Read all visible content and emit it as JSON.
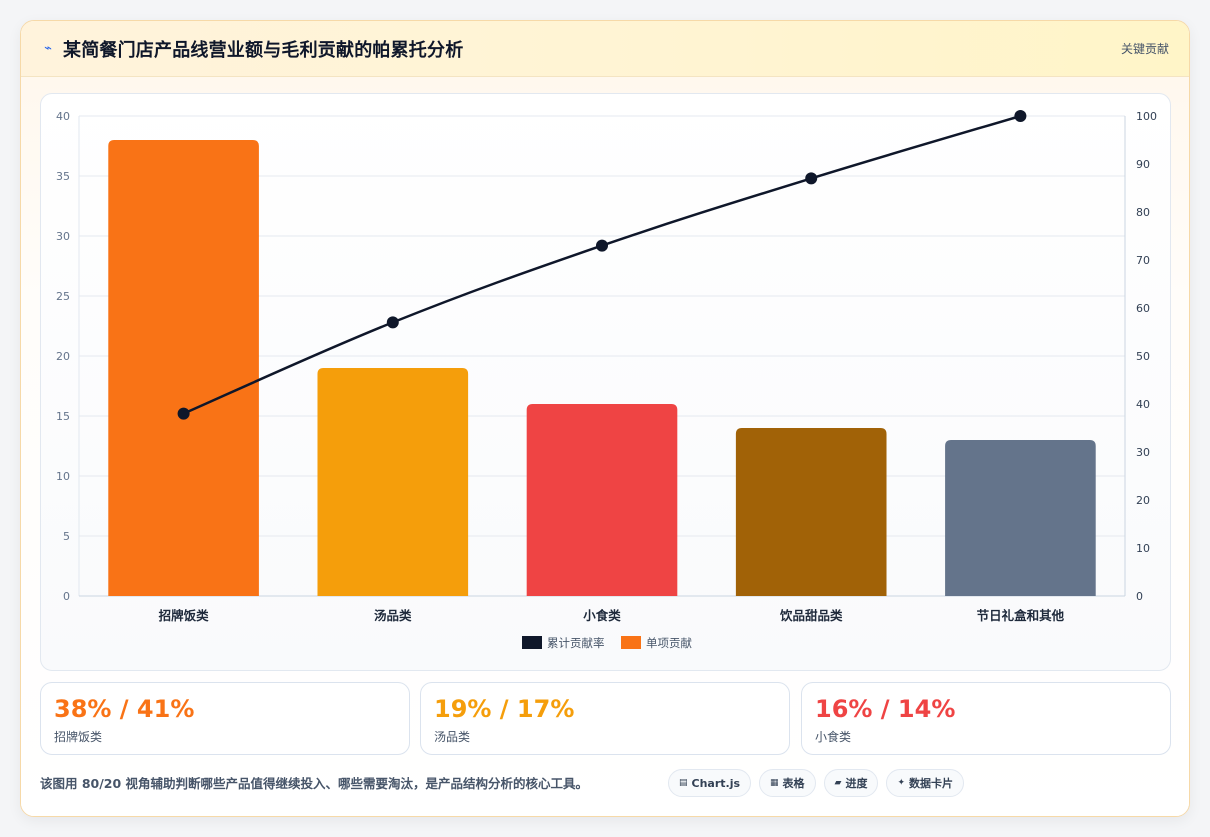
{
  "header": {
    "title": "某简餐门店产品线营业额与毛利贡献的帕累托分析",
    "icon": "lightning-icon",
    "tag": "关键贡献"
  },
  "chart_data": {
    "type": "bar",
    "categories": [
      "招牌饭类",
      "汤品类",
      "小食类",
      "饮品甜品类",
      "节日礼盒和其他"
    ],
    "series": [
      {
        "name": "单项贡献",
        "type": "bar",
        "values": [
          38,
          19,
          16,
          14,
          13
        ],
        "colors": [
          "#f97316",
          "#f59e0b",
          "#ef4444",
          "#a16207",
          "#64748b"
        ],
        "axis": "left"
      },
      {
        "name": "累计贡献率",
        "type": "line",
        "values": [
          38,
          57,
          73,
          87,
          100
        ],
        "color": "#0f172a",
        "axis": "right"
      }
    ],
    "y_left": {
      "min": 0,
      "max": 40,
      "ticks": [
        0,
        5,
        10,
        15,
        20,
        25,
        30,
        35,
        40
      ]
    },
    "y_right": {
      "min": 0,
      "max": 100,
      "ticks": [
        0,
        10,
        20,
        30,
        40,
        50,
        60,
        70,
        80,
        90,
        100
      ]
    },
    "grid": true,
    "legend_position": "bottom",
    "legend_order": [
      "累计贡献率",
      "单项贡献"
    ]
  },
  "stats": [
    {
      "value": "38% / 41%",
      "label": "招牌饭类",
      "color": "#f97316"
    },
    {
      "value": "19% / 17%",
      "label": "汤品类",
      "color": "#f59e0b"
    },
    {
      "value": "16% / 14%",
      "label": "小食类",
      "color": "#ef4444"
    }
  ],
  "footer": {
    "note": "该图用 80/20 视角辅助判断哪些产品值得继续投入、哪些需要淘汰，是产品结构分析的核心工具。",
    "chips": [
      {
        "icon": "chart-icon",
        "glyph": "▤",
        "label": "Chart.js"
      },
      {
        "icon": "table-icon",
        "glyph": "▦",
        "label": "表格"
      },
      {
        "icon": "progress-icon",
        "glyph": "▰",
        "label": "进度"
      },
      {
        "icon": "sparkle-icon",
        "glyph": "✦",
        "label": "数据卡片"
      }
    ]
  }
}
